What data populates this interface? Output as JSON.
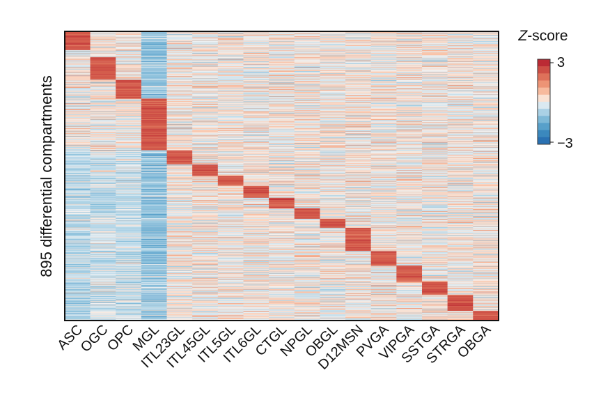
{
  "chart_data": {
    "type": "heatmap",
    "title": "",
    "ylabel": "895 differential compartments",
    "xlabel": "",
    "row_count": 895,
    "columns": [
      "ASC",
      "OGC",
      "OPC",
      "MGL",
      "ITL23GL",
      "ITL45GL",
      "ITL5GL",
      "ITL6GL",
      "CTGL",
      "NPGL",
      "OBGL",
      "D12MSN",
      "PVGA",
      "VIPGA",
      "SSTGA",
      "STRGA",
      "OBGA"
    ],
    "colorbar": {
      "title": "Z-score",
      "title_italic_part": "Z",
      "title_rest": "-score",
      "max_label": "3",
      "min_label": "−3",
      "range": [
        -3,
        3
      ],
      "colormap": "RdBu_r"
    },
    "blocks": [
      {
        "column": "ASC",
        "row_start": 0,
        "row_end": 58
      },
      {
        "column": "OGC",
        "row_start": 80,
        "row_end": 150
      },
      {
        "column": "OPC",
        "row_start": 150,
        "row_end": 208
      },
      {
        "column": "MGL",
        "row_start": 208,
        "row_end": 368
      },
      {
        "column": "ITL23GL",
        "row_start": 368,
        "row_end": 412
      },
      {
        "column": "ITL45GL",
        "row_start": 412,
        "row_end": 448
      },
      {
        "column": "ITL5GL",
        "row_start": 448,
        "row_end": 478
      },
      {
        "column": "ITL6GL",
        "row_start": 478,
        "row_end": 515
      },
      {
        "column": "CTGL",
        "row_start": 515,
        "row_end": 548
      },
      {
        "column": "NPGL",
        "row_start": 548,
        "row_end": 580
      },
      {
        "column": "OBGL",
        "row_start": 580,
        "row_end": 608
      },
      {
        "column": "D12MSN",
        "row_start": 608,
        "row_end": 680
      },
      {
        "column": "PVGA",
        "row_start": 680,
        "row_end": 725
      },
      {
        "column": "VIPGA",
        "row_start": 725,
        "row_end": 775
      },
      {
        "column": "SSTGA",
        "row_start": 775,
        "row_end": 815
      },
      {
        "column": "STRGA",
        "row_start": 815,
        "row_end": 865
      },
      {
        "column": "OBGA",
        "row_start": 865,
        "row_end": 895
      }
    ],
    "colors": {
      "high": "#b2182b",
      "mid": "#f2f2f2",
      "low": "#2166ac"
    }
  }
}
